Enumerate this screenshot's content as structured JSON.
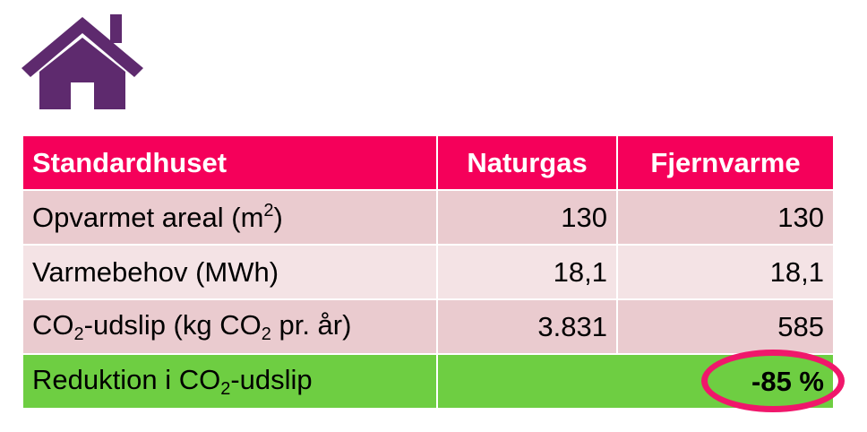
{
  "icon": {
    "name": "house-icon",
    "color": "#5e2a6e"
  },
  "table": {
    "header": {
      "label": "Standardhuset",
      "col1": "Naturgas",
      "col2": "Fjernvarme"
    },
    "rows": [
      {
        "label_main": "Opvarmet areal (m",
        "label_sup": "2",
        "label_end": ")",
        "col1": "130",
        "col2": "130"
      },
      {
        "label": "Varmebehov (MWh)",
        "col1": "18,1",
        "col2": "18,1"
      },
      {
        "label_a": "CO",
        "label_sub_a": "2",
        "label_b": "-udslip (kg CO",
        "label_sub_b": "2",
        "label_c": " pr. år)",
        "col1": "3.831",
        "col2": "585"
      }
    ],
    "result": {
      "label_a": "Reduktion i CO",
      "label_sub": "2",
      "label_b": "-udslip",
      "value": "-85 %"
    }
  },
  "colors": {
    "header": "#f5005a",
    "row_dark": "#eacbcf",
    "row_light": "#f4e3e5",
    "result": "#6ece42",
    "highlight_circle": "#f0176b"
  }
}
